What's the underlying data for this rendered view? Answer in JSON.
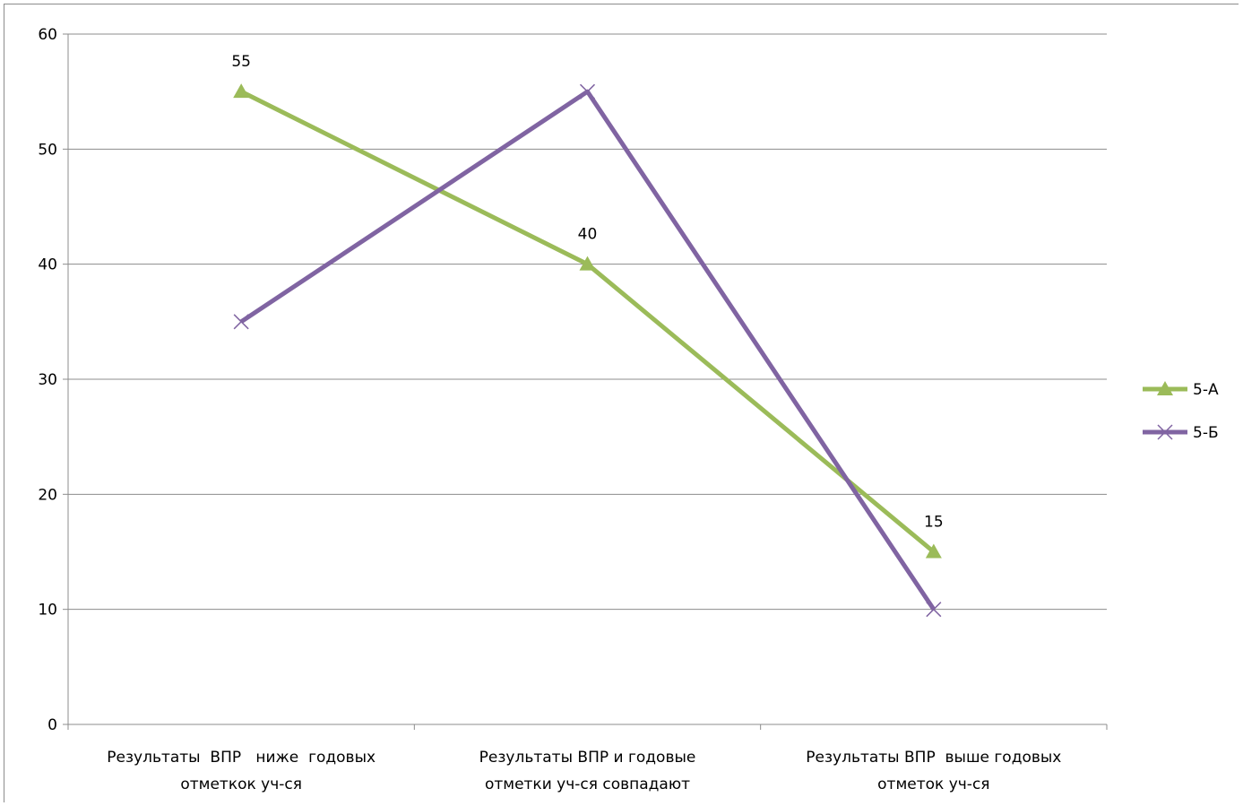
{
  "chart_data": {
    "type": "line",
    "title": "",
    "xlabel": "",
    "ylabel": "",
    "ylim": [
      0,
      60
    ],
    "yticks": [
      0,
      10,
      20,
      30,
      40,
      50,
      60
    ],
    "grid": true,
    "legend_position": "right",
    "categories": [
      [
        "Результаты  ВПР   ниже  годовых",
        "отметкок уч-ся"
      ],
      [
        "Результаты ВПР и годовые",
        "отметки уч-ся совпадают"
      ],
      [
        "Результаты ВПР  выше годовых",
        "отметок уч-ся"
      ]
    ],
    "series": [
      {
        "name": "5-А",
        "values": [
          55,
          40,
          15
        ],
        "color": "#9bbb59",
        "marker": "triangle",
        "data_labels": [
          "55",
          "40",
          "15"
        ]
      },
      {
        "name": "5-Б",
        "values": [
          35,
          55,
          10
        ],
        "color": "#8064a2",
        "marker": "x"
      }
    ]
  }
}
